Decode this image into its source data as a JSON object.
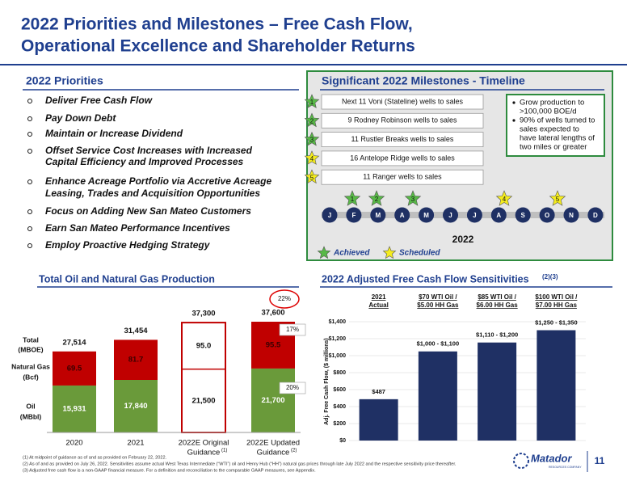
{
  "title": [
    "2022 Priorities and Milestones – Free Cash Flow,",
    "Operational Excellence and Shareholder Returns"
  ],
  "priorities": {
    "heading": "2022 Priorities",
    "items": [
      [
        "Deliver Free Cash Flow"
      ],
      [
        "Pay Down Debt"
      ],
      [
        "Maintain or Increase Dividend"
      ],
      [
        "Offset Service Cost Increases with Increased",
        "Capital Efficiency and Improved Processes"
      ],
      [
        "Enhance Acreage Portfolio via Accretive Acreage",
        "Leasing, Trades and Acquisition Opportunities"
      ],
      [
        "Focus on Adding New San Mateo Customers"
      ],
      [
        "Earn San Mateo Performance Incentives"
      ],
      [
        "Employ Proactive Hedging Strategy"
      ]
    ]
  },
  "timeline": {
    "heading": "Significant 2022 Milestones - Timeline",
    "milestones": [
      {
        "number": "1",
        "label": "Next 11 Voni (Stateline) wells to sales",
        "status": "achieved"
      },
      {
        "number": "2",
        "label": "9 Rodney Robinson wells to sales",
        "status": "achieved"
      },
      {
        "number": "3",
        "label": "11 Rustler Breaks wells to sales",
        "status": "achieved"
      },
      {
        "number": "4",
        "label": "16 Antelope Ridge wells to sales",
        "status": "scheduled"
      },
      {
        "number": "5",
        "label": "11 Ranger wells to sales",
        "status": "scheduled"
      }
    ],
    "notes": [
      [
        "Grow production to",
        ">100,000 BOE/d"
      ],
      [
        "90% of wells turned to",
        "sales expected to",
        "have lateral lengths of",
        "two miles or greater"
      ]
    ],
    "months": [
      "J",
      "F",
      "M",
      "A",
      "M",
      "J",
      "J",
      "A",
      "S",
      "O",
      "N",
      "D"
    ],
    "year": "2022",
    "legend": {
      "achieved": "Achieved",
      "scheduled": "Scheduled"
    },
    "colors": {
      "achieved": "#58b947",
      "scheduled": "#f4ec1e"
    }
  },
  "chart_data": [
    {
      "type": "stacked-bar",
      "title": "Total Oil and Natural Gas Production",
      "categories": [
        [
          "2020"
        ],
        [
          "2021"
        ],
        [
          "2022E Original",
          "Guidance"
        ],
        [
          "2022E Updated",
          "Guidance"
        ]
      ],
      "category_notes": [
        null,
        null,
        "(1)",
        "(2)"
      ],
      "series": [
        {
          "name": [
            "Oil",
            "(MBbl)"
          ],
          "color": "#6a9a3a",
          "values": [
            15931,
            17840,
            21500,
            21700
          ],
          "value_labels": [
            "15,931",
            "17,840",
            "21,500",
            "21,700"
          ]
        },
        {
          "name": [
            "Natural Gas",
            "(Bcf)"
          ],
          "color": "#c00000",
          "values": [
            69.5,
            81.7,
            95.0,
            95.5
          ],
          "value_labels": [
            "69.5",
            "81.7",
            "95.0",
            "95.5"
          ]
        }
      ],
      "totals": {
        "name": [
          "Total",
          "(MBOE)"
        ],
        "values": [
          27514,
          31454,
          37300,
          37600
        ],
        "value_labels": [
          "27,514",
          "31,454",
          "37,300",
          "37,600"
        ]
      },
      "hollow": [
        false,
        false,
        true,
        false
      ],
      "annotations": [
        {
          "value": 22,
          "label": "22%"
        },
        {
          "value": 17,
          "label": "17%"
        },
        {
          "value": 20,
          "label": "20%"
        }
      ]
    },
    {
      "type": "bar",
      "title": "2022 Adjusted Free Cash Flow Sensitivities",
      "title_note": "(2)(3)",
      "categories": [
        [
          "2021",
          "Actual"
        ],
        [
          "$70 WTI Oil /",
          "$5.00 HH Gas"
        ],
        [
          "$85 WTI Oil /",
          "$6.00 HH Gas"
        ],
        [
          "$100 WTI Oil /",
          "$7.00 HH Gas"
        ]
      ],
      "values": [
        487,
        1050,
        1155,
        1300
      ],
      "value_labels": [
        "$487",
        "$1,000 - $1,100",
        "$1,110 - $1,200",
        "$1,250 - $1,350"
      ],
      "color": "#1f3064",
      "ylabel": "Adj. Free Cash Flow, ($ millions)",
      "ylim": [
        0,
        1400
      ],
      "yticks": [
        {
          "value": 0,
          "label": "$0"
        },
        {
          "value": 200,
          "label": "$200"
        },
        {
          "value": 400,
          "label": "$400"
        },
        {
          "value": 600,
          "label": "$600"
        },
        {
          "value": 800,
          "label": "$800"
        },
        {
          "value": 1000,
          "label": "$1,000"
        },
        {
          "value": 1200,
          "label": "$1,200"
        },
        {
          "value": 1400,
          "label": "$1,400"
        }
      ],
      "grid": true
    }
  ],
  "footnotes": [
    "(1)   At midpoint of guidance as of and as provided on February 22, 2022.",
    "(2)   As of and as provided on July 26, 2022. Sensitivities assume actual West Texas Intermediate (“WTI”) oil and Henry Hub (“HH”) natural gas prices through late July 2022 and the respective sensitivity price thereafter.",
    "(3)   Adjusted free cash flow is a non-GAAP financial measure. For a definition and reconciliation to the comparable GAAP measures, see Appendix."
  ],
  "logo": {
    "name": "Matador",
    "tagline": "RESOURCES COMPANY"
  },
  "page_number": "11"
}
